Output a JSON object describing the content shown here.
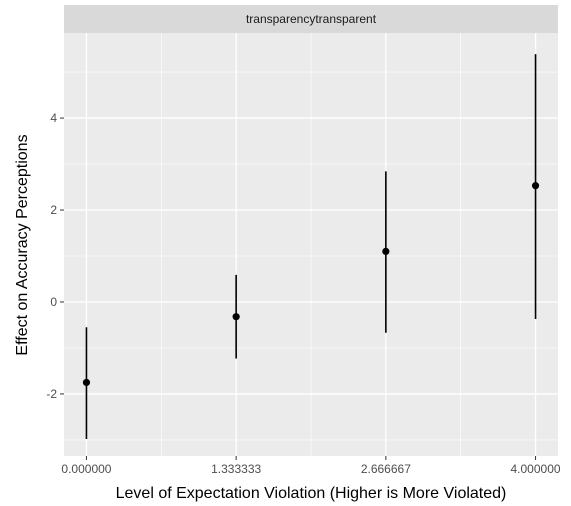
{
  "chart_data": {
    "type": "scatter",
    "title": "",
    "facet_label": "transparencytransparent",
    "xlabel": "Level of Expectation Violation (Higher is More Violated)",
    "ylabel": "Effect on Accuracy Perceptions",
    "x_ticks": [
      "0.000000",
      "1.333333",
      "2.666667",
      "4.000000"
    ],
    "x_tick_values": [
      0,
      1.333333,
      2.666667,
      4
    ],
    "y_ticks": [
      "-2",
      "0",
      "2",
      "4"
    ],
    "y_tick_values": [
      -2,
      0,
      2,
      4
    ],
    "xlim": [
      -0.2,
      4.2
    ],
    "ylim": [
      -3.35,
      5.85
    ],
    "grid": true,
    "errorbars": true,
    "points": [
      {
        "x": 0,
        "y": -1.75,
        "lower": -2.98,
        "upper": -0.55
      },
      {
        "x": 1.333333,
        "y": -0.32,
        "lower": -1.23,
        "upper": 0.59
      },
      {
        "x": 2.666667,
        "y": 1.1,
        "lower": -0.67,
        "upper": 2.84
      },
      {
        "x": 4,
        "y": 2.53,
        "lower": -0.37,
        "upper": 5.39
      }
    ],
    "colors": {
      "panel_background": "#ebebeb",
      "strip_background": "#d9d9d9",
      "grid_major": "#ffffff",
      "points": "#000000"
    }
  }
}
